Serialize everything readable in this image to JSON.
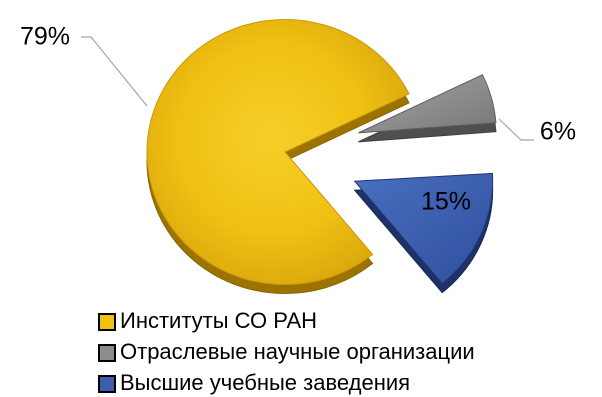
{
  "chart_data": {
    "type": "pie",
    "style": "3d-exploded",
    "legend_position": "bottom",
    "slices": [
      {
        "label": "Институты СО РАН",
        "value": 79,
        "value_label": "79%",
        "color": "#F2C010"
      },
      {
        "label": "Отраслевые научные организации",
        "value": 6,
        "value_label": "6%",
        "color": "#8C8C8C"
      },
      {
        "label": "Высшие учебные заведения",
        "value": 15,
        "value_label": "15%",
        "color": "#3A5DAE"
      }
    ]
  }
}
